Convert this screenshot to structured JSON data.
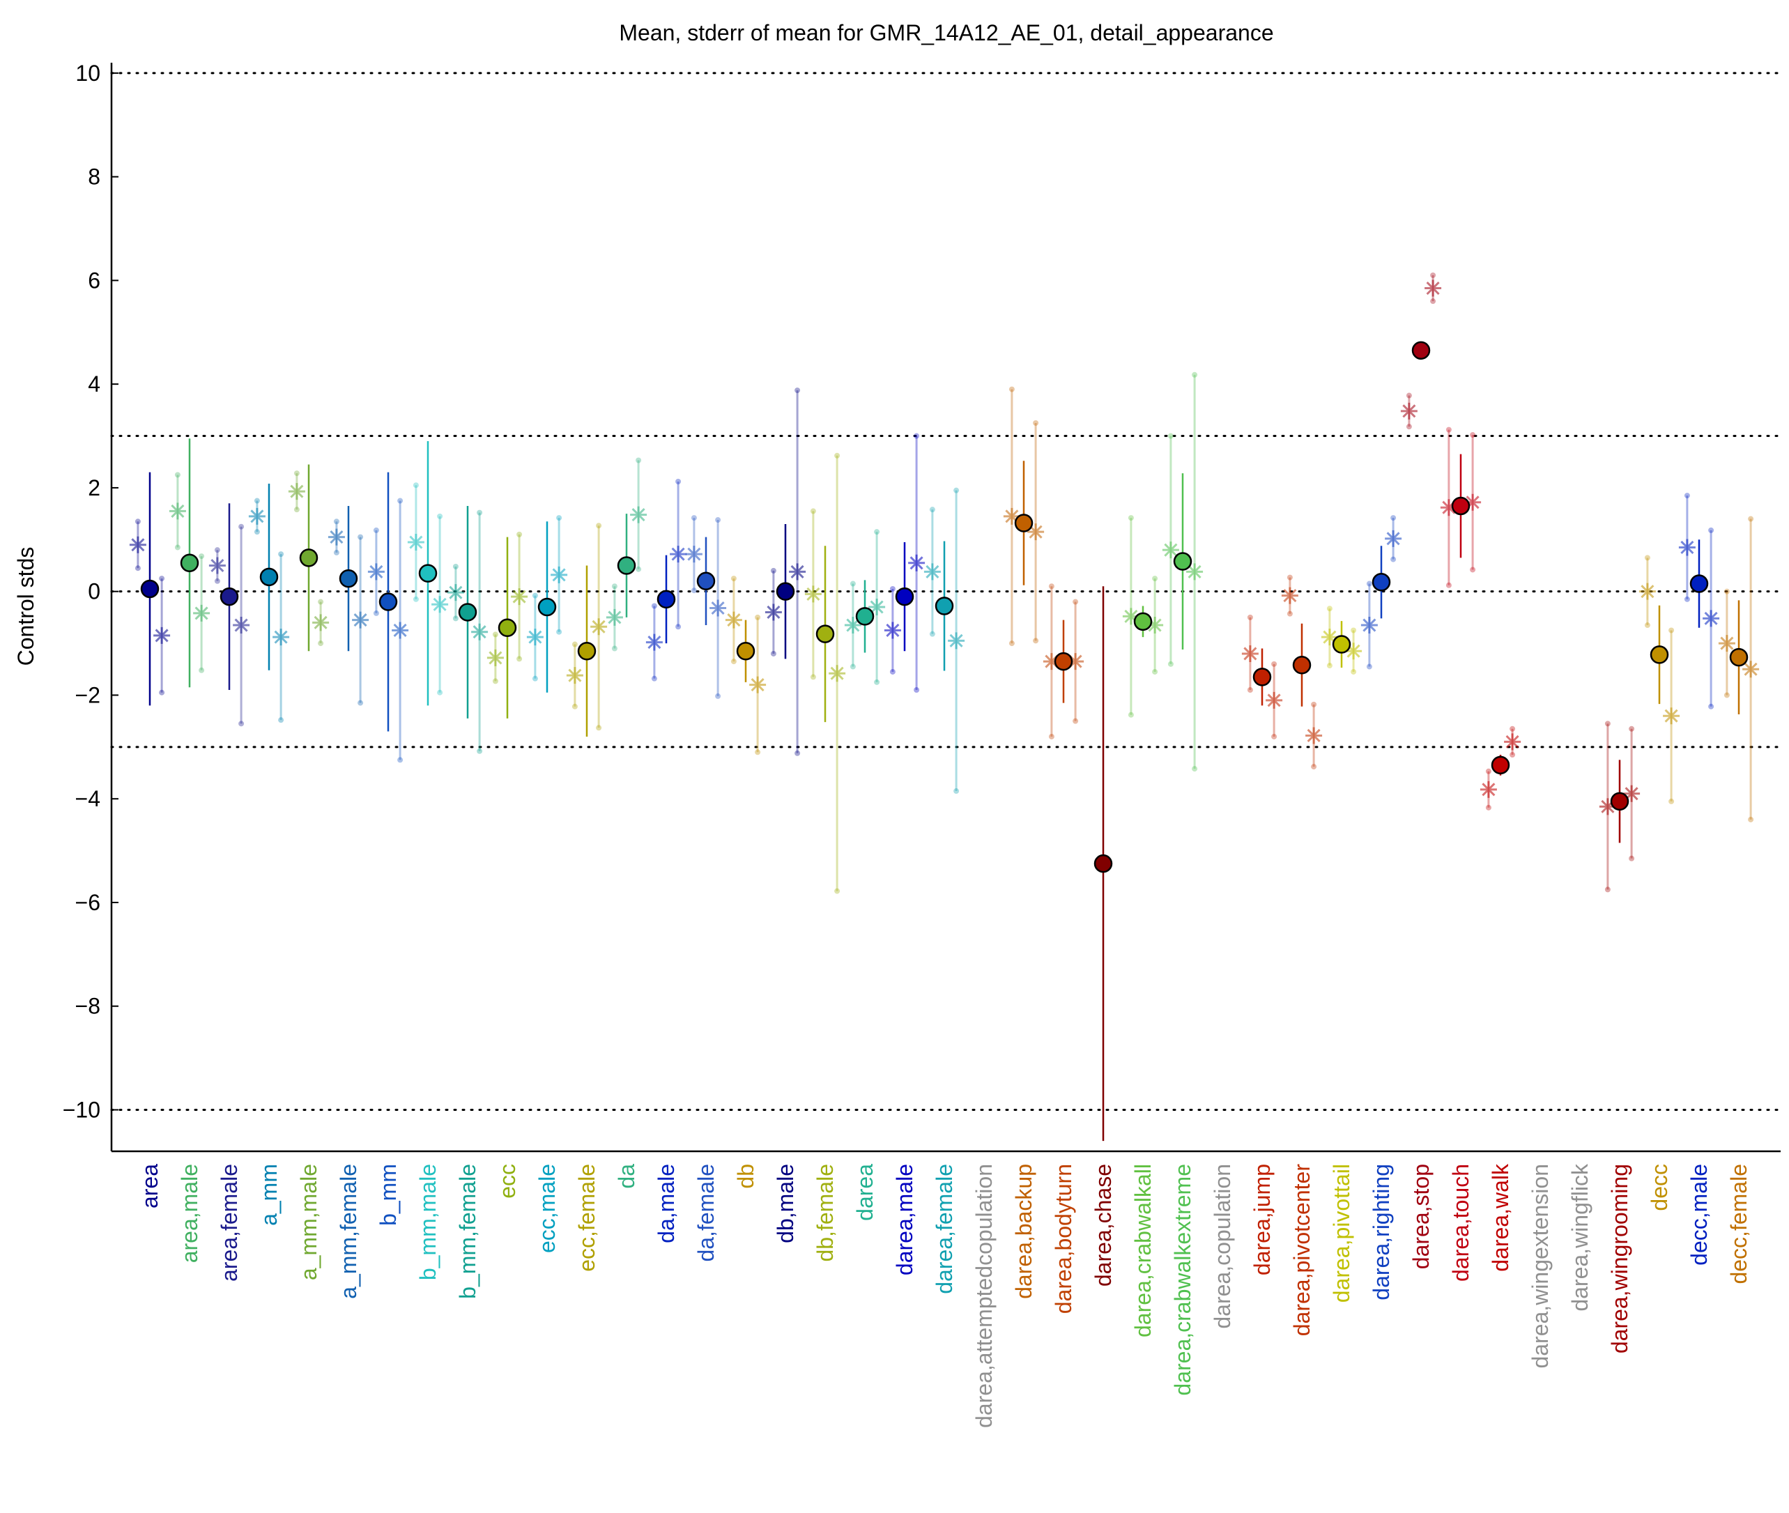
{
  "chart_data": {
    "type": "errorbar",
    "title": "Mean, stderr of mean for GMR_14A12_AE_01, detail_appearance",
    "ylabel": "Control stds",
    "categories": [
      "area",
      "area,male",
      "area,female",
      "a_mm",
      "a_mm,male",
      "a_mm,female",
      "b_mm",
      "b_mm,male",
      "b_mm,female",
      "ecc",
      "ecc,male",
      "ecc,female",
      "da",
      "da,male",
      "da,female",
      "db",
      "db,male",
      "db,female",
      "darea",
      "darea,male",
      "darea,female",
      "darea,attemptedcopulation",
      "darea,backup",
      "darea,bodyturn",
      "darea,chase",
      "darea,crabwalkall",
      "darea,crabwalkextreme",
      "darea,copulation",
      "darea,jump",
      "darea,pivotcenter",
      "darea,pivottail",
      "darea,righting",
      "darea,stop",
      "darea,touch",
      "darea,walk",
      "darea,wingextension",
      "darea,wingflick",
      "darea,wingrooming",
      "decc",
      "decc,male",
      "decc,female"
    ],
    "category_colors": [
      "#00008b",
      "#40b060",
      "#1a1a8c",
      "#0080b0",
      "#70a830",
      "#1060b0",
      "#1050c0",
      "#20c0c0",
      "#10a090",
      "#90b010",
      "#00a0c0",
      "#b0a000",
      "#30b080",
      "#0020c0",
      "#2050c0",
      "#c09000",
      "#000080",
      "#a0b010",
      "#20b090",
      "#0000c0",
      "#10a0b0",
      "#909090",
      "#c06000",
      "#c04000",
      "#800000",
      "#60c040",
      "#50c050",
      "#909090",
      "#c02000",
      "#c03000",
      "#c0c000",
      "#1040c0",
      "#a00010",
      "#c00010",
      "#c00000",
      "#909090",
      "#909090",
      "#a00000",
      "#c09000",
      "#0020c0",
      "#c07000"
    ],
    "series": [
      {
        "marker": "circle",
        "values": [
          0.05,
          0.55,
          -0.1,
          0.28,
          0.65,
          0.25,
          -0.2,
          0.35,
          -0.4,
          -0.7,
          -0.3,
          -1.15,
          0.5,
          -0.15,
          0.2,
          -1.15,
          0.0,
          -0.82,
          -0.48,
          -0.1,
          -0.28,
          null,
          1.32,
          -1.35,
          -5.25,
          -0.58,
          0.58,
          null,
          -1.65,
          -1.42,
          -1.02,
          0.18,
          4.65,
          1.65,
          -3.35,
          null,
          null,
          -4.05,
          -1.22,
          0.15,
          -1.27
        ],
        "errors": [
          2.25,
          2.4,
          1.8,
          1.8,
          1.8,
          1.4,
          2.5,
          2.55,
          2.05,
          1.75,
          1.65,
          1.65,
          1.0,
          0.85,
          0.85,
          0.6,
          1.3,
          1.7,
          0.7,
          1.05,
          1.25,
          null,
          1.2,
          0.8,
          5.35,
          0.3,
          1.7,
          null,
          0.55,
          0.8,
          0.45,
          0.7,
          0.15,
          1.0,
          0.2,
          null,
          null,
          0.8,
          0.95,
          0.85,
          1.1
        ]
      },
      {
        "marker": "star",
        "values": [
          0.9,
          1.55,
          0.5,
          1.45,
          1.93,
          1.05,
          0.38,
          0.95,
          -0.02,
          -1.28,
          -0.88,
          -1.62,
          -0.5,
          -0.98,
          0.72,
          -0.55,
          -0.4,
          -0.05,
          -0.65,
          -0.75,
          0.38,
          null,
          1.45,
          -1.35,
          null,
          -0.48,
          0.8,
          null,
          -1.2,
          -0.08,
          -0.88,
          -0.65,
          3.48,
          1.62,
          -3.82,
          null,
          null,
          -4.15,
          0.0,
          0.85,
          -1.0
        ],
        "errors": [
          0.45,
          0.7,
          0.3,
          0.3,
          0.35,
          0.3,
          0.8,
          1.1,
          0.5,
          0.45,
          0.8,
          0.6,
          0.6,
          0.7,
          0.7,
          0.8,
          0.8,
          1.6,
          0.8,
          0.8,
          1.2,
          null,
          2.45,
          1.45,
          null,
          1.9,
          2.2,
          null,
          0.7,
          0.35,
          0.55,
          0.8,
          0.3,
          1.5,
          0.35,
          null,
          null,
          1.6,
          0.65,
          1.0,
          1.0
        ]
      },
      {
        "marker": "star",
        "values": [
          -0.85,
          -0.42,
          -0.65,
          -0.88,
          -0.6,
          -0.55,
          -0.75,
          -0.25,
          -0.78,
          -0.1,
          0.32,
          -0.68,
          1.48,
          0.72,
          -0.32,
          -1.8,
          0.38,
          -1.58,
          -0.3,
          0.55,
          -0.95,
          null,
          1.15,
          -1.35,
          null,
          -0.65,
          0.38,
          null,
          -2.1,
          -2.78,
          -1.15,
          1.02,
          5.85,
          1.72,
          -2.9,
          null,
          null,
          -3.9,
          -2.4,
          -0.52,
          -1.5
        ],
        "errors": [
          1.1,
          1.1,
          1.9,
          1.6,
          0.4,
          1.6,
          2.5,
          1.7,
          2.3,
          1.2,
          1.1,
          1.95,
          1.05,
          1.4,
          1.7,
          1.3,
          3.5,
          4.2,
          1.45,
          2.45,
          2.9,
          null,
          2.1,
          1.15,
          null,
          0.9,
          3.8,
          null,
          0.7,
          0.6,
          0.4,
          0.4,
          0.25,
          1.3,
          0.25,
          null,
          null,
          1.25,
          1.65,
          1.7,
          2.9
        ]
      }
    ],
    "ylim": [
      -10.8,
      10.2
    ],
    "yticks": [
      {
        "value": -10,
        "label": "−10"
      },
      {
        "value": -8,
        "label": "−8"
      },
      {
        "value": -6,
        "label": "−6"
      },
      {
        "value": -4,
        "label": "−4"
      },
      {
        "value": -2,
        "label": "−2"
      },
      0,
      2,
      4,
      6,
      8,
      10
    ],
    "reference_lines": [
      -10,
      -3,
      0,
      3,
      10
    ],
    "grid": false
  }
}
